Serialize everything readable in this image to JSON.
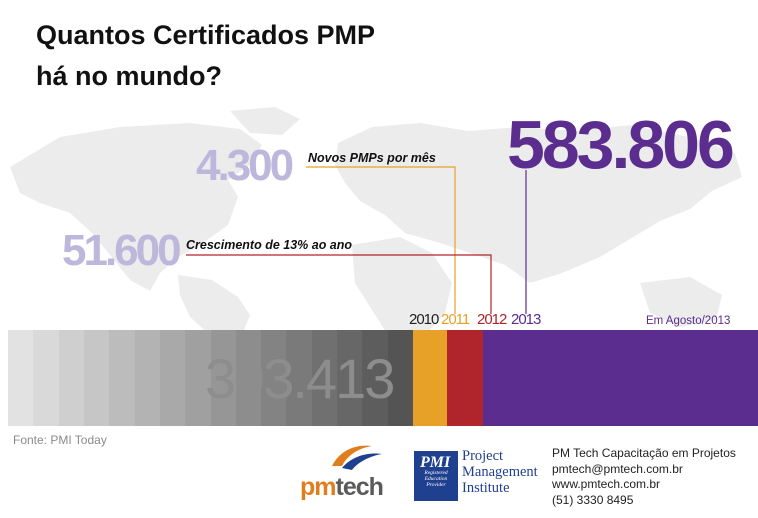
{
  "title": {
    "line1": "Quantos Certificados PMP",
    "line2": "há no mundo?"
  },
  "headline": {
    "total": "583.806",
    "color": "#5b2d8e"
  },
  "callouts": {
    "monthly": {
      "value": "4.300",
      "label": "Novos PMPs por mês",
      "line_color": "#e8a128"
    },
    "growth": {
      "value": "51.600",
      "label": "Crescimento de 13% ao ano",
      "line_color": "#b0242b"
    },
    "value_color": "#bdb8db"
  },
  "chart_data": {
    "type": "bar",
    "orientation": "horizontal-stacked",
    "categories": [
      "2010",
      "2011",
      "2012",
      "2013"
    ],
    "values": [
      393413,
      4300,
      51600,
      583806
    ],
    "segment_end_labels": [
      "2010",
      "2011",
      "2012",
      "2013"
    ],
    "base_label": "393.413",
    "total_label": "583.806",
    "colors": [
      "#555555",
      "#e8a128",
      "#b0242b",
      "#5b2d8e"
    ],
    "note": "Em Agosto/2013"
  },
  "source": "Fonte: PMI Today",
  "logos": {
    "pmtech": {
      "prefix": "pm",
      "suffix": "tech"
    },
    "pmi": {
      "tagline": "Registered Education Provider",
      "name_lines": [
        "Project",
        "Management",
        "Institute"
      ]
    }
  },
  "contact": {
    "company": "PM Tech Capacitação em Projetos",
    "email": "pmtech@pmtech.com.br",
    "website": "www.pmtech.com.br",
    "phone": "(51) 3330 8495"
  }
}
